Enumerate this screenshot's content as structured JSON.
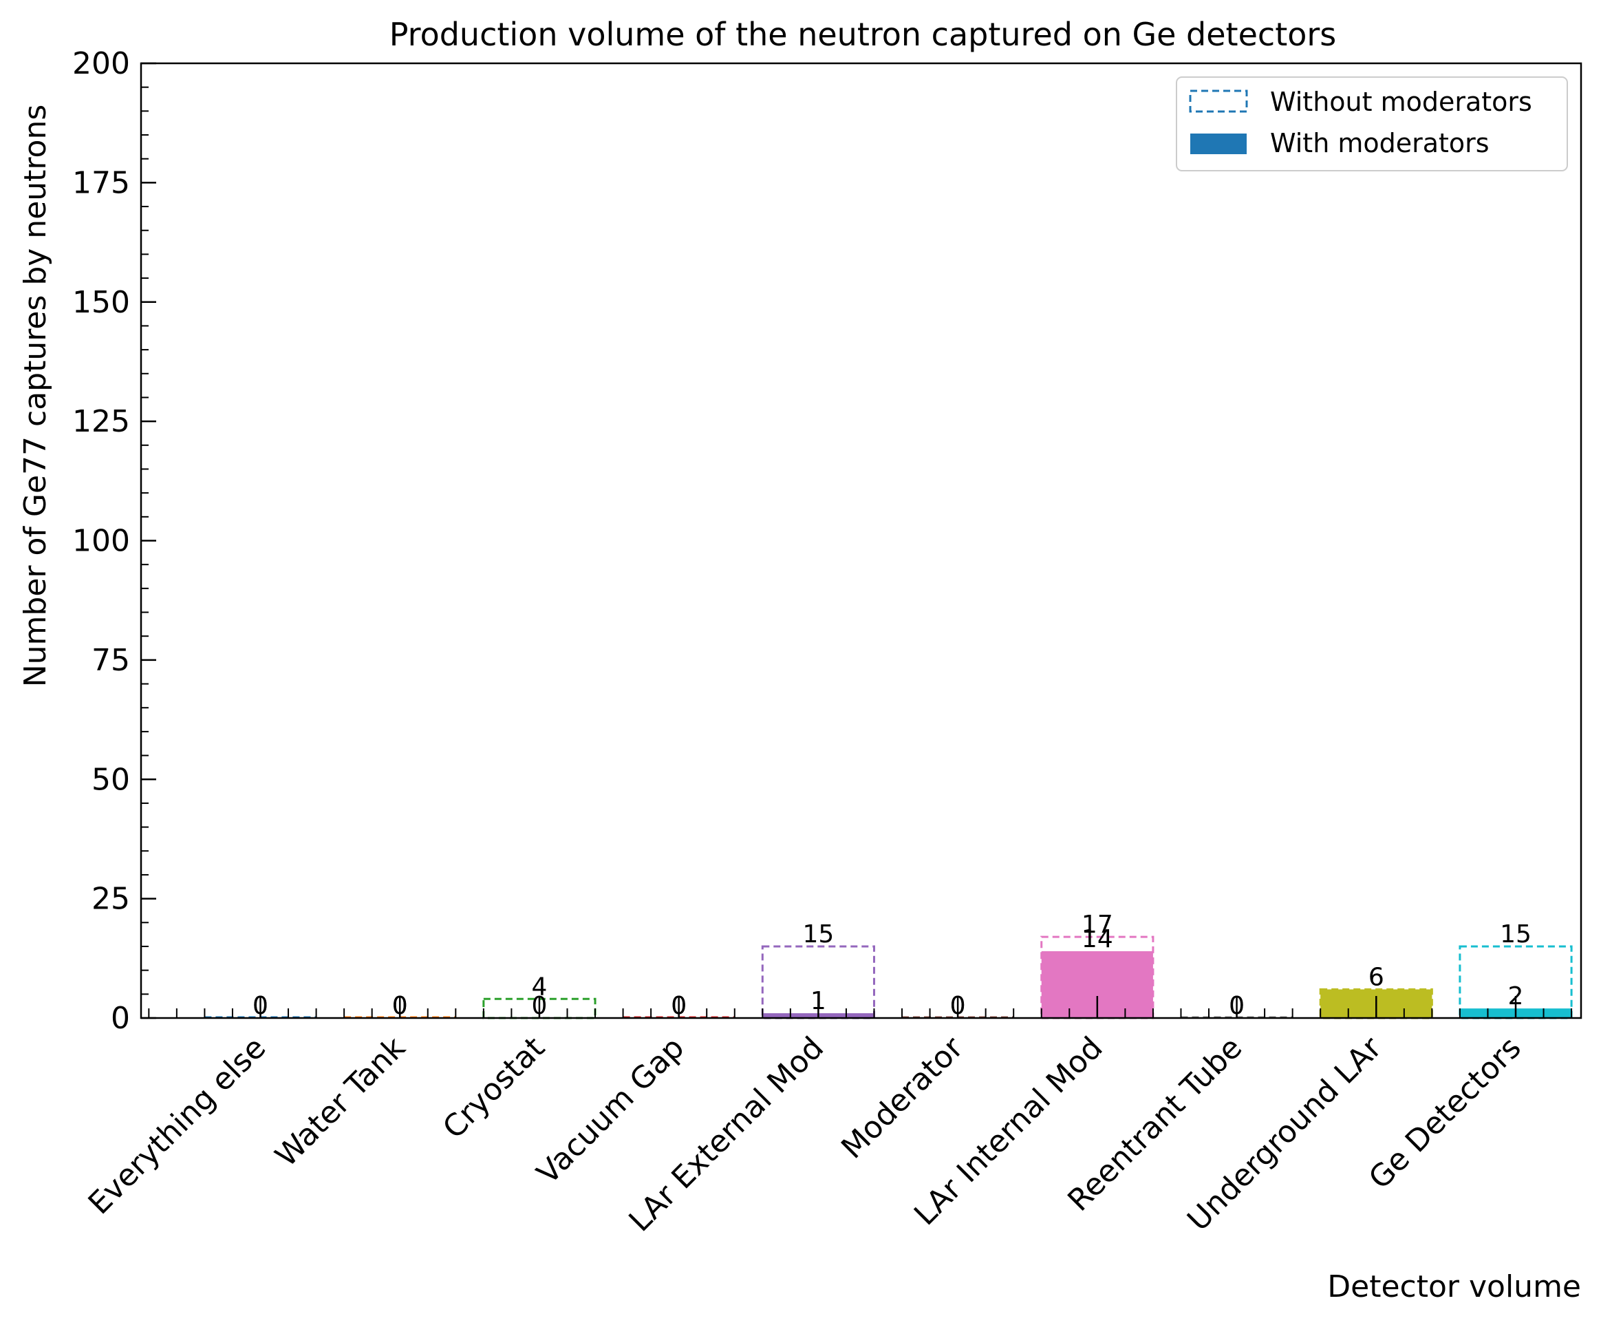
{
  "chart_data": {
    "type": "bar",
    "title": "Production volume of the neutron captured on Ge detectors",
    "xlabel": "Detector volume",
    "ylabel": "Number of Ge77 captures by neutrons",
    "ylim": [
      0,
      200
    ],
    "yticks": [
      "0",
      "25",
      "50",
      "75",
      "100",
      "125",
      "150",
      "175",
      "200"
    ],
    "grid": false,
    "legend_position": "top-right",
    "categories": [
      "Everything else",
      "Water Tank",
      "Cryostat",
      "Vacuum Gap",
      "LAr External Mod",
      "Moderator",
      "LAr Internal Mod",
      "Reentrant Tube",
      "Underground LAr",
      "Ge Detectors"
    ],
    "colors": [
      "#1f77b4",
      "#ff7f0e",
      "#2ca02c",
      "#d62728",
      "#9467bd",
      "#8c564b",
      "#e377c2",
      "#7f7f7f",
      "#bcbd22",
      "#17becf"
    ],
    "series": [
      {
        "name": "Without moderators",
        "style": "dashed-outline",
        "values": [
          0,
          0,
          4,
          0,
          15,
          0,
          17,
          0,
          6,
          15
        ]
      },
      {
        "name": "With moderators",
        "style": "filled",
        "values": [
          0,
          0,
          0,
          0,
          1,
          0,
          14,
          0,
          6,
          2
        ]
      }
    ],
    "legend_colors": [
      "#1f77b4",
      "#1f77b4"
    ]
  }
}
